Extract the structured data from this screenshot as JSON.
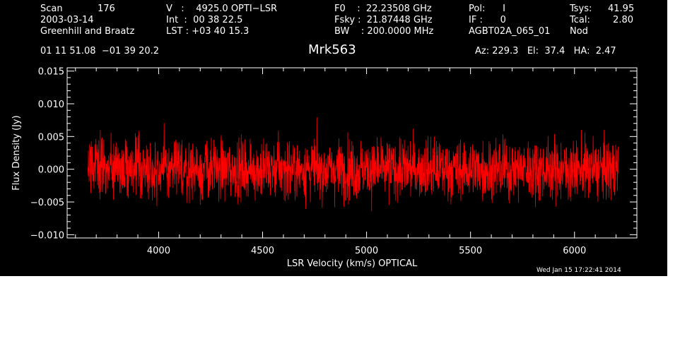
{
  "header": {
    "col1": {
      "scan_label": "Scan",
      "scan_value": "176",
      "date": "2003-03-14",
      "observer": "Greenhill and Braatz",
      "coords": "01 11 51.08  −01 39 20.2"
    },
    "col2": {
      "v_line": "V   :    4925.0 OPTI−LSR",
      "int_line": "Int  :  00 38 22.5",
      "lst_line": "LST : +03 40 15.3"
    },
    "col3": {
      "f0_line": "F0    :  22.23508 GHz",
      "fsky_line": "Fsky :  21.87448 GHz",
      "bw_line": "BW    : 200.0000 MHz"
    },
    "col4": {
      "pol_line": "Pol:      I",
      "if_line": "IF :      0",
      "project": "AGBT02A_065_01"
    },
    "col5": {
      "tsys_label": "Tsys:",
      "tsys_value": "41.95",
      "tcal_label": "Tcal:",
      "tcal_value": "2.80",
      "mode": "Nod"
    },
    "source": "Mrk563",
    "pointing": "Az: 229.3   El:  37.4   HA:  2.47",
    "timestamp": "Wed Jan 15 17:22:41 2014"
  },
  "colors": {
    "background": "#000000",
    "axes": "#ffffff",
    "series": "#ff0000"
  },
  "chart_data": {
    "type": "line",
    "title": "Mrk563",
    "xlabel": "LSR Velocity (km/s) OPTICAL",
    "ylabel": "Flux Density (Jy)",
    "xlim": [
      3560,
      6300
    ],
    "ylim": [
      -0.0105,
      0.0155
    ],
    "x_range": [
      3660,
      6210
    ],
    "x_ticks": [
      4000,
      4500,
      5000,
      5500,
      6000
    ],
    "x_tick_labels": [
      "4000",
      "4500",
      "5000",
      "5500",
      "6000"
    ],
    "y_ticks": [
      -0.01,
      -0.005,
      0.0,
      0.005,
      0.01,
      0.015
    ],
    "y_tick_labels": [
      "−0.010",
      "−0.005",
      "0.000",
      "0.005",
      "0.010",
      "0.015"
    ],
    "series": [
      {
        "description": "noise-like spectrum centered near 0.000 Jy, peak-to-peak roughly ±0.008 Jy",
        "center": 0.0,
        "rms": 0.0025
      }
    ],
    "grid": false,
    "legend": "none"
  }
}
